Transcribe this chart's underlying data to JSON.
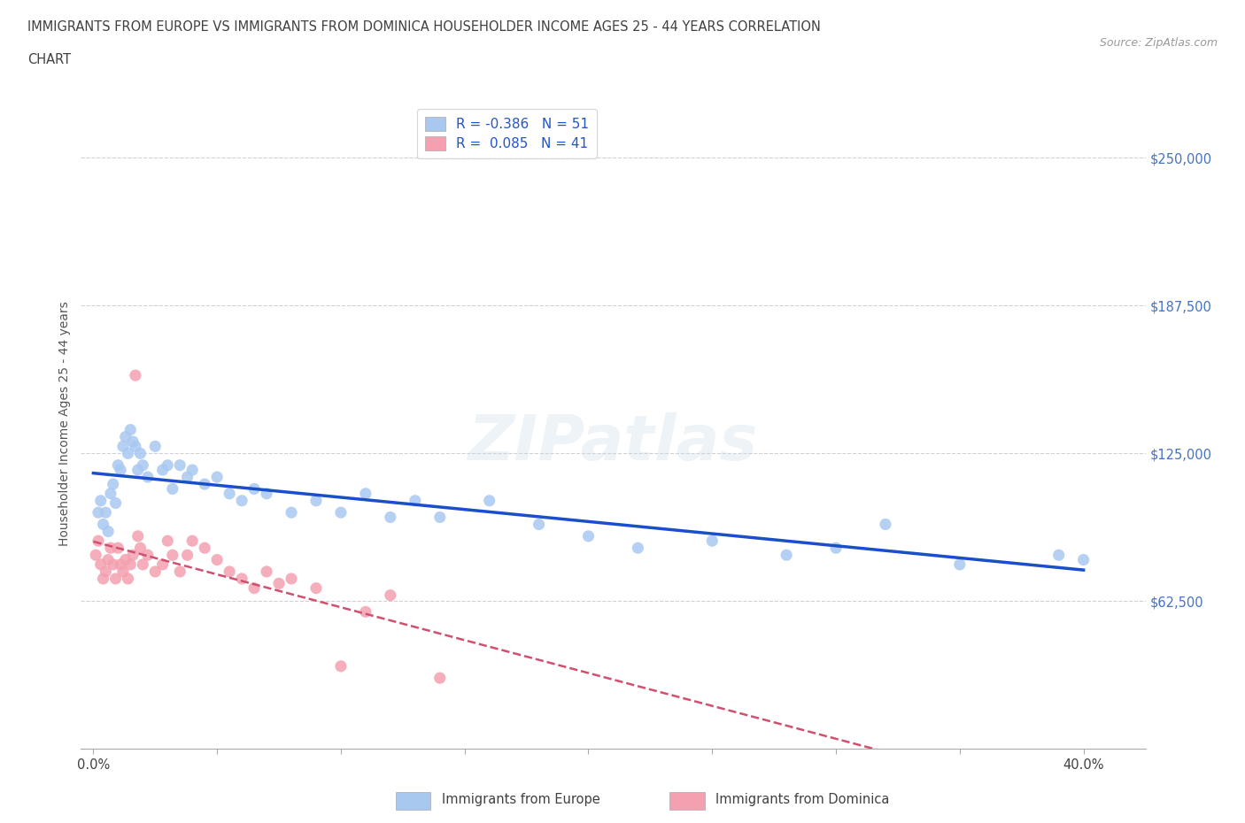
{
  "title_line1": "IMMIGRANTS FROM EUROPE VS IMMIGRANTS FROM DOMINICA HOUSEHOLDER INCOME AGES 25 - 44 YEARS CORRELATION",
  "title_line2": "CHART",
  "source_text": "Source: ZipAtlas.com",
  "ylabel": "Householder Income Ages 25 - 44 years",
  "xlim": [
    -0.005,
    0.425
  ],
  "ylim": [
    0,
    275000
  ],
  "yticks": [
    62500,
    125000,
    187500,
    250000
  ],
  "xticks": [
    0.0,
    0.05,
    0.1,
    0.15,
    0.2,
    0.25,
    0.3,
    0.35,
    0.4
  ],
  "background_color": "#ffffff",
  "grid_color": "#cccccc",
  "y_label_color": "#4472c4",
  "title_color": "#404040",
  "watermark_text": "ZIPatlas",
  "legend_R1": "R = -0.386   N = 51",
  "legend_R2": "R =  0.085   N = 41",
  "legend_label1": "Immigrants from Europe",
  "legend_label2": "Immigrants from Dominica",
  "europe_color": "#a8c8f0",
  "dominica_color": "#f4a0b0",
  "europe_line_color": "#1a4fcc",
  "dominica_line_color": "#d05070",
  "europe_x": [
    0.002,
    0.003,
    0.004,
    0.005,
    0.006,
    0.007,
    0.008,
    0.009,
    0.01,
    0.011,
    0.012,
    0.013,
    0.014,
    0.015,
    0.016,
    0.017,
    0.018,
    0.019,
    0.02,
    0.022,
    0.025,
    0.028,
    0.03,
    0.032,
    0.035,
    0.038,
    0.04,
    0.045,
    0.05,
    0.055,
    0.06,
    0.065,
    0.07,
    0.08,
    0.09,
    0.1,
    0.11,
    0.12,
    0.13,
    0.14,
    0.16,
    0.18,
    0.2,
    0.22,
    0.25,
    0.28,
    0.3,
    0.32,
    0.35,
    0.39,
    0.4
  ],
  "europe_y": [
    100000,
    105000,
    95000,
    100000,
    92000,
    108000,
    112000,
    104000,
    120000,
    118000,
    128000,
    132000,
    125000,
    135000,
    130000,
    128000,
    118000,
    125000,
    120000,
    115000,
    128000,
    118000,
    120000,
    110000,
    120000,
    115000,
    118000,
    112000,
    115000,
    108000,
    105000,
    110000,
    108000,
    100000,
    105000,
    100000,
    108000,
    98000,
    105000,
    98000,
    105000,
    95000,
    90000,
    85000,
    88000,
    82000,
    85000,
    95000,
    78000,
    82000,
    80000
  ],
  "dominica_x": [
    0.001,
    0.002,
    0.003,
    0.004,
    0.005,
    0.006,
    0.007,
    0.008,
    0.009,
    0.01,
    0.011,
    0.012,
    0.013,
    0.014,
    0.015,
    0.016,
    0.017,
    0.018,
    0.019,
    0.02,
    0.022,
    0.025,
    0.028,
    0.03,
    0.032,
    0.035,
    0.038,
    0.04,
    0.045,
    0.05,
    0.055,
    0.06,
    0.065,
    0.07,
    0.075,
    0.08,
    0.09,
    0.1,
    0.11,
    0.12,
    0.14
  ],
  "dominica_y": [
    82000,
    88000,
    78000,
    72000,
    75000,
    80000,
    85000,
    78000,
    72000,
    85000,
    78000,
    75000,
    80000,
    72000,
    78000,
    82000,
    158000,
    90000,
    85000,
    78000,
    82000,
    75000,
    78000,
    88000,
    82000,
    75000,
    82000,
    88000,
    85000,
    80000,
    75000,
    72000,
    68000,
    75000,
    70000,
    72000,
    68000,
    35000,
    58000,
    65000,
    30000
  ]
}
